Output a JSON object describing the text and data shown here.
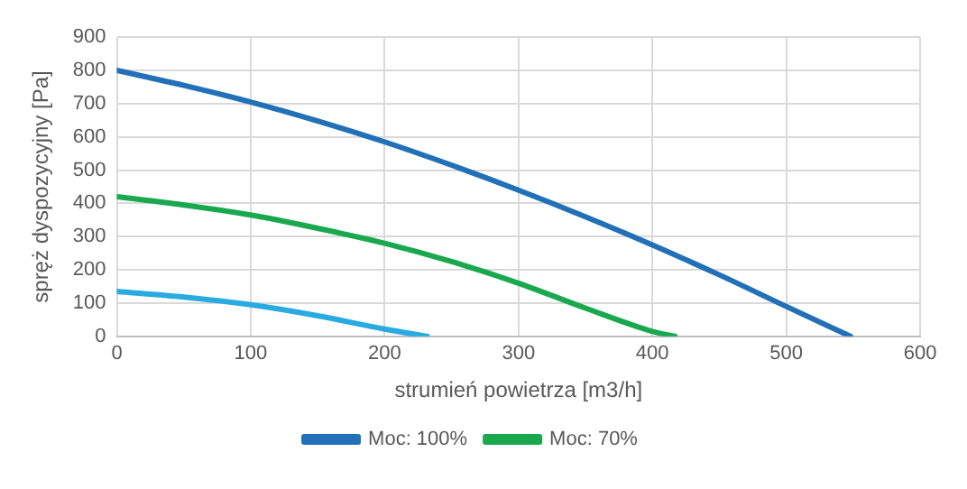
{
  "chart_data": {
    "type": "line",
    "xlabel": "strumień powietrza [m3/h]",
    "ylabel": "spręż dyspozycyjny [Pa]",
    "xlim": [
      0,
      600
    ],
    "xticks": [
      0,
      100,
      200,
      300,
      400,
      500,
      600
    ],
    "ylim": [
      0,
      900
    ],
    "yticks": [
      0,
      100,
      200,
      300,
      400,
      500,
      600,
      700,
      800,
      900
    ],
    "grid": true,
    "legend": "bottom",
    "marker": "none",
    "line_style": "solid",
    "series": [
      {
        "name": "Moc: 100%",
        "color": "#2270b8",
        "x": [
          0,
          50,
          100,
          150,
          200,
          250,
          300,
          350,
          400,
          450,
          500,
          548
        ],
        "values": [
          800,
          755,
          705,
          648,
          585,
          515,
          440,
          360,
          275,
          185,
          90,
          0
        ]
      },
      {
        "name": "Moc: 70%",
        "color": "#1aa84f",
        "x": [
          0,
          50,
          100,
          150,
          200,
          250,
          300,
          350,
          400,
          417
        ],
        "values": [
          420,
          395,
          365,
          325,
          280,
          225,
          160,
          85,
          15,
          0
        ]
      },
      {
        "color": "#29abe2",
        "x": [
          0,
          50,
          100,
          150,
          200,
          232
        ],
        "values": [
          135,
          118,
          95,
          62,
          22,
          0
        ]
      }
    ]
  }
}
